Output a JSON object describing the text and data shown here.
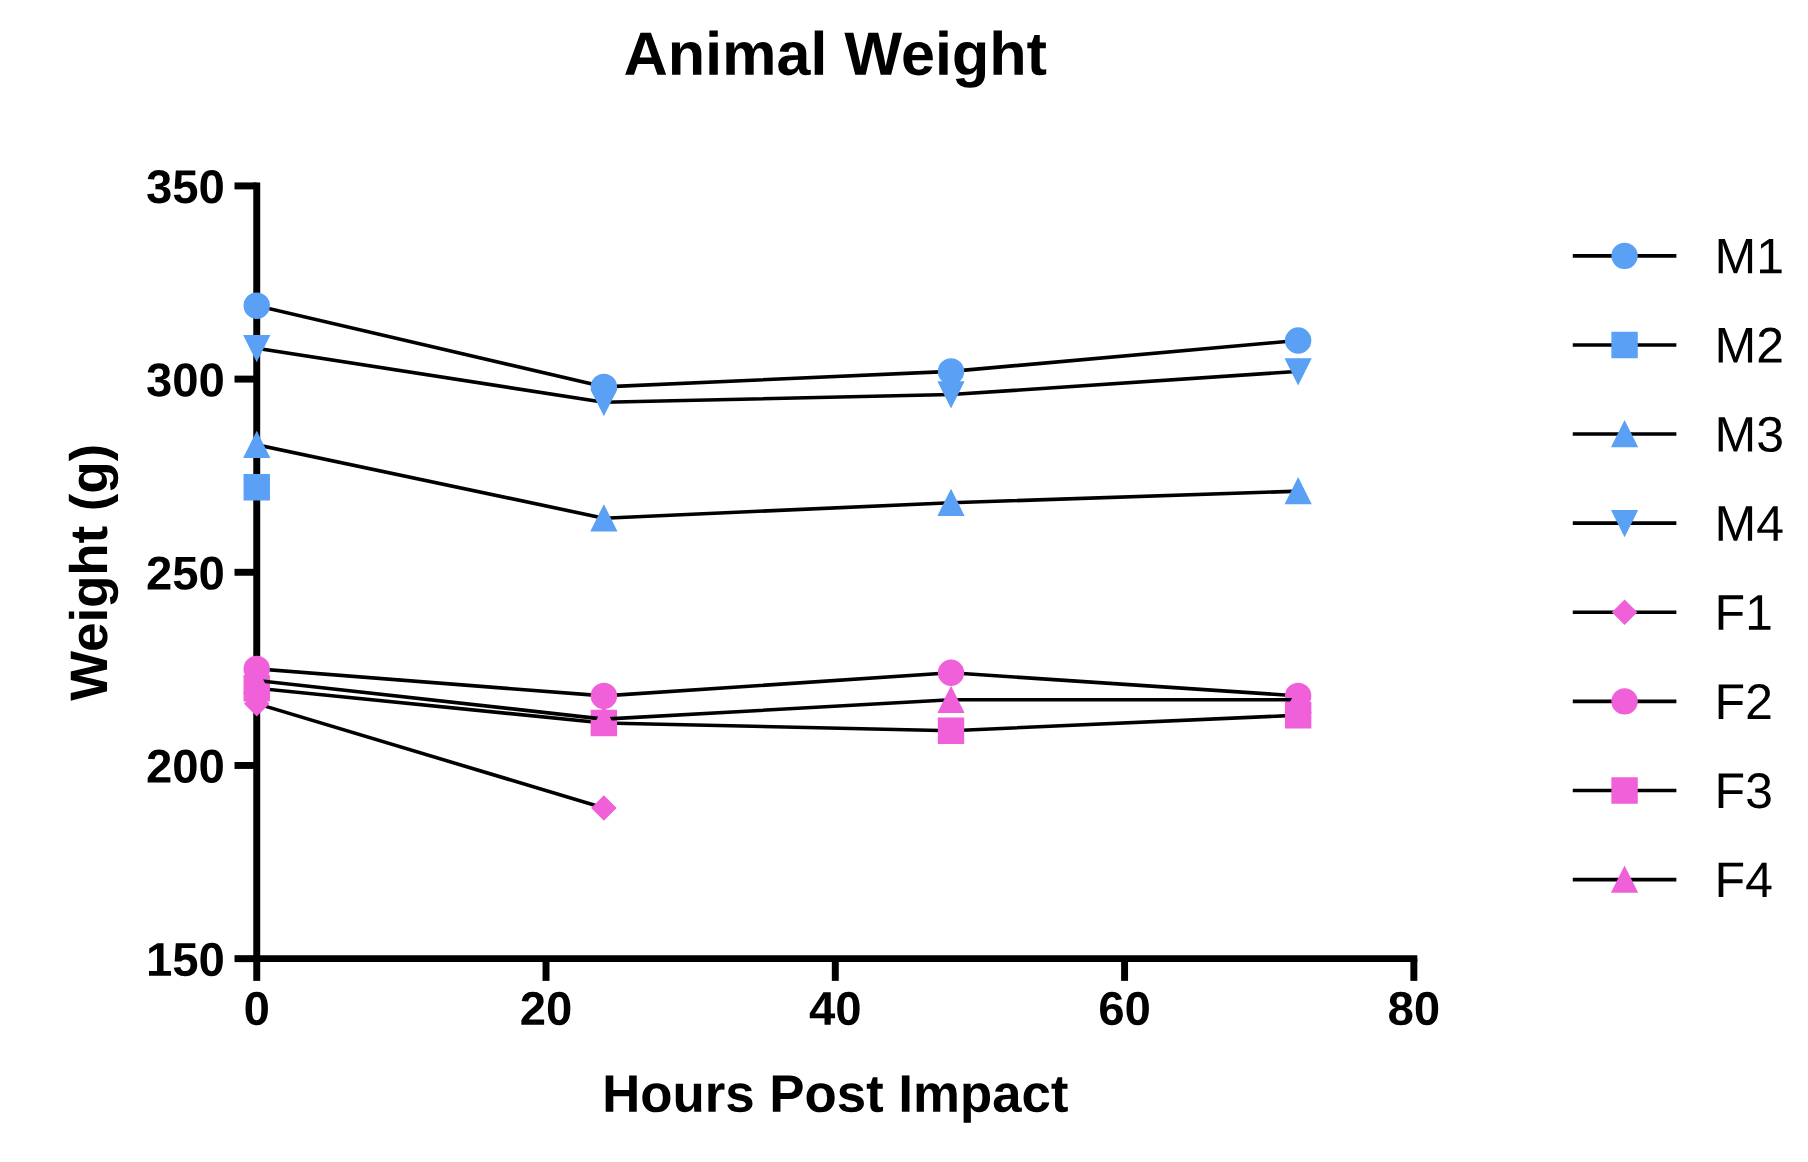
{
  "chart_data": {
    "type": "line",
    "title": "Animal Weight",
    "xlabel": "Hours Post Impact",
    "ylabel": "Weight (g)",
    "x": [
      0,
      24,
      48,
      72
    ],
    "xlim": [
      0,
      80
    ],
    "xticks": [
      0,
      20,
      40,
      60,
      80
    ],
    "ylim": [
      150,
      350
    ],
    "yticks": [
      150,
      200,
      250,
      300,
      350
    ],
    "grid": false,
    "legend": "right",
    "line_style": "solid",
    "series": [
      {
        "name": "M1",
        "color": "#5aa0f5",
        "marker": "circle",
        "values": [
          319,
          298,
          302,
          310
        ]
      },
      {
        "name": "M2",
        "color": "#5aa0f5",
        "marker": "square",
        "values": [
          272,
          null,
          null,
          null
        ]
      },
      {
        "name": "M3",
        "color": "#5aa0f5",
        "marker": "triangle",
        "values": [
          283,
          264,
          268,
          271
        ]
      },
      {
        "name": "M4",
        "color": "#5aa0f5",
        "marker": "triangle_down",
        "values": [
          308,
          294,
          296,
          302
        ]
      },
      {
        "name": "F1",
        "color": "#f060d8",
        "marker": "diamond",
        "values": [
          216,
          189,
          null,
          null
        ]
      },
      {
        "name": "F2",
        "color": "#f060d8",
        "marker": "circle",
        "values": [
          225,
          218,
          224,
          218
        ]
      },
      {
        "name": "F3",
        "color": "#f060d8",
        "marker": "square",
        "values": [
          220,
          211,
          209,
          213
        ]
      },
      {
        "name": "F4",
        "color": "#f060d8",
        "marker": "triangle",
        "values": [
          222,
          212,
          217,
          217
        ]
      }
    ]
  }
}
